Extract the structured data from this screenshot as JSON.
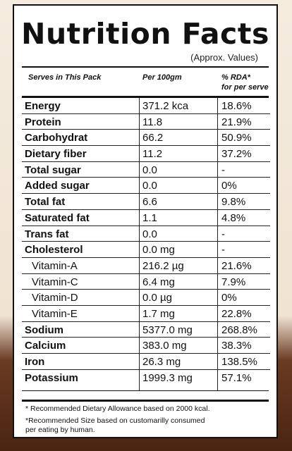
{
  "title": "Nutrition Facts",
  "subtitle": "(Approx. Values)",
  "headers": {
    "col1": "Serves in This Pack",
    "col2": "Per 100gm",
    "col3_line1": "% RDA*",
    "col3_line2": "for per serve"
  },
  "rows": [
    {
      "name": "Energy",
      "value": "371.2 kca",
      "rda": "18.6%",
      "sub": false
    },
    {
      "name": "Protein",
      "value": "11.8",
      "rda": "21.9%",
      "sub": false
    },
    {
      "name": "Carbohydrat",
      "value": "66.2",
      "rda": "50.9%",
      "sub": false
    },
    {
      "name": "Dietary fiber",
      "value": "11.2",
      "rda": "37.2%",
      "sub": false
    },
    {
      "name": "Total sugar",
      "value": "0.0",
      "rda": "-",
      "sub": false
    },
    {
      "name": "Added sugar",
      "value": "0.0",
      "rda": "0%",
      "sub": false
    },
    {
      "name": "Total fat",
      "value": "6.6",
      "rda": "9.8%",
      "sub": false
    },
    {
      "name": "Saturated fat",
      "value": "1.1",
      "rda": "4.8%",
      "sub": false
    },
    {
      "name": "Trans fat",
      "value": "0.0",
      "rda": "-",
      "sub": false
    },
    {
      "name": "Cholesterol",
      "value": "0.0 mg",
      "rda": "-",
      "sub": false
    },
    {
      "name": "Vitamin-A",
      "value": "216.2 µg",
      "rda": "21.6%",
      "sub": true
    },
    {
      "name": "Vitamin-C",
      "value": "6.4 mg",
      "rda": "7.9%",
      "sub": true
    },
    {
      "name": "Vitamin-D",
      "value": "0.0 µg",
      "rda": "0%",
      "sub": true
    },
    {
      "name": "Vitamin-E",
      "value": "1.7 mg",
      "rda": "22.8%",
      "sub": true
    },
    {
      "name": "Sodium",
      "value": "5377.0 mg",
      "rda": "268.8%",
      "sub": false
    },
    {
      "name": "Calcium",
      "value": "383.0 mg",
      "rda": "38.3%",
      "sub": false
    },
    {
      "name": "Iron",
      "value": "26.3 mg",
      "rda": "138.5%",
      "sub": false
    },
    {
      "name": "Potassium",
      "value": "1999.3 mg",
      "rda": "57.1%",
      "sub": false
    }
  ],
  "footnotes": {
    "note1": "* Recommended Dietary Allowance based on 2000 kcal.",
    "note2_line1": "*Recommended Size based on customarilly consumed",
    "note2_line2": "per eating by human."
  }
}
